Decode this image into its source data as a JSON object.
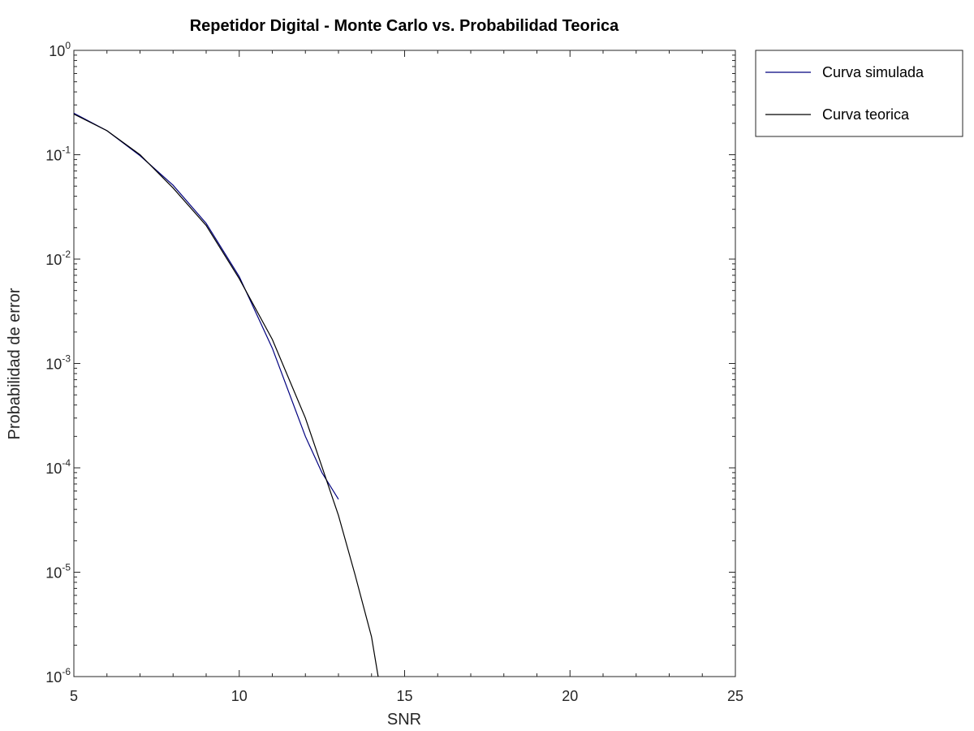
{
  "chart_data": {
    "type": "line",
    "title": "Repetidor Digital - Monte Carlo vs. Probabilidad Teorica",
    "xlabel": "SNR",
    "ylabel": "Probabilidad de error",
    "xlim": [
      5,
      25
    ],
    "ylim": [
      1e-06,
      1
    ],
    "yscale": "log",
    "grid": false,
    "legend_position": "outside-top-right",
    "x_ticks": [
      "5",
      "10",
      "15",
      "20",
      "25"
    ],
    "y_ticks": [
      {
        "base": "10",
        "exp": "0",
        "value": 1
      },
      {
        "base": "10",
        "exp": "-1",
        "value": 0.1
      },
      {
        "base": "10",
        "exp": "-2",
        "value": 0.01
      },
      {
        "base": "10",
        "exp": "-3",
        "value": 0.001
      },
      {
        "base": "10",
        "exp": "-4",
        "value": 0.0001
      },
      {
        "base": "10",
        "exp": "-5",
        "value": 1e-05
      },
      {
        "base": "10",
        "exp": "-6",
        "value": 1e-06
      }
    ],
    "series": [
      {
        "name": "Curva simulada",
        "color": "#00007f",
        "x": [
          5,
          6,
          7,
          8,
          9,
          10,
          11,
          12,
          12.5,
          13
        ],
        "y": [
          0.25,
          0.17,
          0.098,
          0.051,
          0.022,
          0.0068,
          0.0014,
          0.0002,
          9e-05,
          5e-05
        ]
      },
      {
        "name": "Curva teorica",
        "color": "#000000",
        "x": [
          5,
          6,
          7,
          8,
          9,
          10,
          11,
          12,
          13,
          13.5,
          14,
          14.2
        ],
        "y": [
          0.245,
          0.17,
          0.1,
          0.048,
          0.021,
          0.0065,
          0.0017,
          0.0003,
          3.5e-05,
          9.5e-06,
          2.4e-06,
          1e-06
        ]
      }
    ]
  }
}
